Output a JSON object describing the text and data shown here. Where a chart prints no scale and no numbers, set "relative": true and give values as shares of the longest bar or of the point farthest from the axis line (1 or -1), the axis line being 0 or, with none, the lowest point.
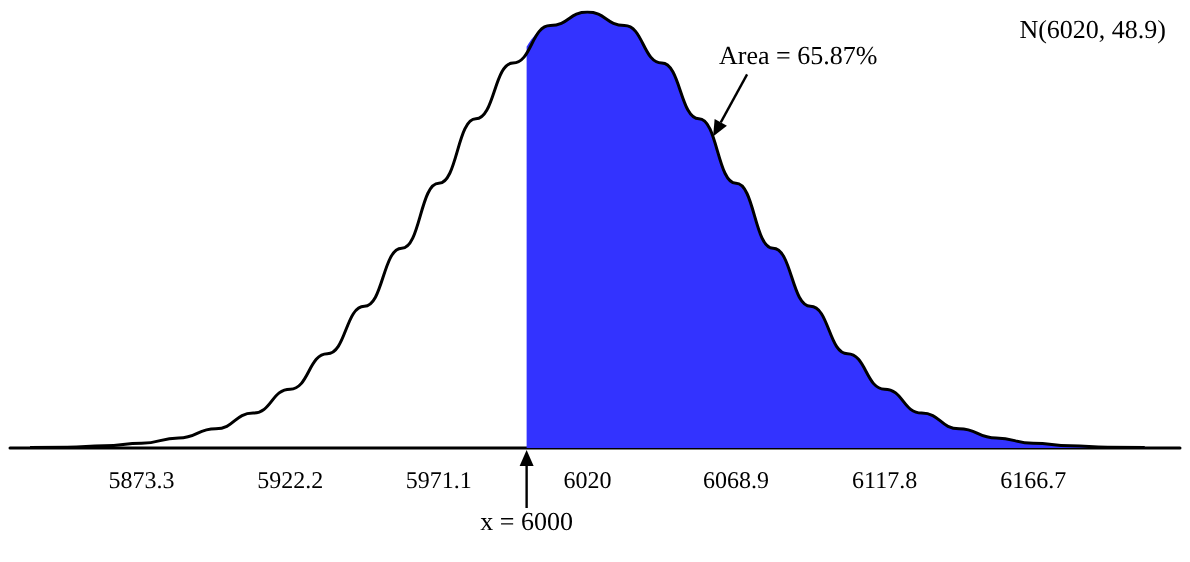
{
  "chart_data": {
    "type": "line",
    "relative": true,
    "xlim": [
      5830,
      6215
    ],
    "xticks": [
      5873.3,
      5922.2,
      5971.1,
      6020,
      6068.9,
      6117.8,
      6166.7
    ],
    "grid": false,
    "marker": "none",
    "line_style": "solid",
    "series": [
      {
        "color": "#000000",
        "x": [
          5836.6,
          5848.8,
          5861.1,
          5873.3,
          5885.5,
          5897.7,
          5910,
          5922.2,
          5934.4,
          5946.6,
          5958.9,
          5971.1,
          5983.3,
          5995.5,
          6007.8,
          6020,
          6032.2,
          6044.5,
          6056.7,
          6068.9,
          6081.1,
          6093.4,
          6105.6,
          6117.8,
          6130,
          6142.3,
          6154.5,
          6166.7,
          6178.9,
          6191.2,
          6203.4
        ],
        "values": [
          0.001,
          0.002,
          0.005,
          0.011,
          0.023,
          0.044,
          0.08,
          0.135,
          0.216,
          0.325,
          0.458,
          0.607,
          0.755,
          0.883,
          0.969,
          1,
          0.969,
          0.883,
          0.755,
          0.607,
          0.458,
          0.325,
          0.216,
          0.135,
          0.08,
          0.044,
          0.023,
          0.011,
          0.005,
          0.002,
          0.001
        ]
      },
      {
        "type": "area",
        "color": "#3333ff",
        "x": [
          6000,
          6007.8,
          6020,
          6032.2,
          6044.5,
          6056.7,
          6068.9,
          6081.1,
          6093.4,
          6105.6,
          6117.8,
          6130,
          6142.3,
          6154.5,
          6166.7,
          6178.9,
          6191.2,
          6203.4
        ],
        "values": [
          0.92,
          0.969,
          1,
          0.969,
          0.883,
          0.755,
          0.607,
          0.458,
          0.325,
          0.216,
          0.135,
          0.08,
          0.044,
          0.023,
          0.011,
          0.005,
          0.002,
          0.001
        ]
      }
    ],
    "annotations": [
      "N(6020, 48.9)",
      {
        "text": "Area = 65.87%",
        "x": 6060.7,
        "y": 0.71
      },
      {
        "text": "x = 6000",
        "x": 6000,
        "y": 0
      }
    ]
  }
}
